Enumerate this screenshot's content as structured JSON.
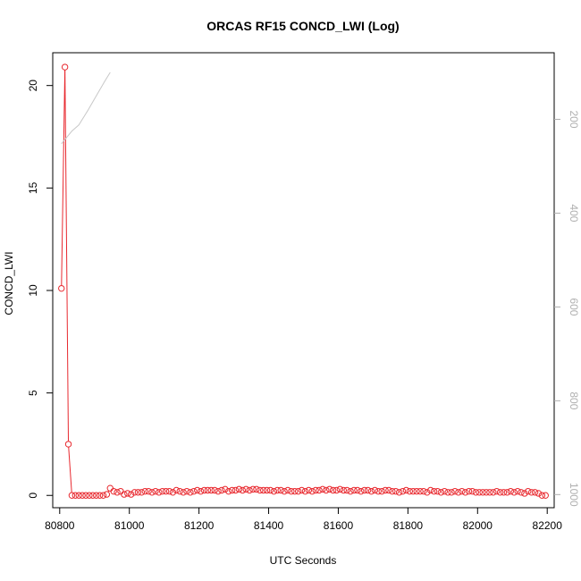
{
  "chart_data": {
    "type": "line",
    "title": "ORCAS RF15 CONCD_LWI (Log)",
    "xlabel": "UTC Seconds",
    "ylabel": "CONCD_LWI",
    "xlim": [
      80780,
      82220
    ],
    "ylim": [
      -0.6,
      21.6
    ],
    "x_ticks": [
      80800,
      81000,
      81200,
      81400,
      81600,
      81800,
      82000,
      82200
    ],
    "y_ticks": [
      0,
      5,
      10,
      15,
      20
    ],
    "y2_ticks": [
      200,
      400,
      600,
      800,
      1000
    ],
    "y2lim": [
      1028,
      58
    ],
    "y2_reversed": true,
    "grid": false,
    "series": [
      {
        "color": "#e8292f",
        "marker": "open-circle",
        "x": [
          80805,
          80815,
          80825,
          80835,
          80845,
          80855,
          80865,
          80875,
          80885,
          80895,
          80905,
          80915,
          80925,
          80935,
          80945,
          80955,
          80965,
          80975,
          80985,
          80995,
          81005,
          81015,
          81025,
          81035,
          81045,
          81055,
          81065,
          81075,
          81085,
          81095,
          81105,
          81115,
          81125,
          81135,
          81145,
          81155,
          81165,
          81175,
          81185,
          81195,
          81205,
          81215,
          81225,
          81235,
          81245,
          81255,
          81265,
          81275,
          81285,
          81295,
          81305,
          81315,
          81325,
          81335,
          81345,
          81355,
          81365,
          81375,
          81385,
          81395,
          81405,
          81415,
          81425,
          81435,
          81445,
          81455,
          81465,
          81475,
          81485,
          81495,
          81505,
          81515,
          81525,
          81535,
          81545,
          81555,
          81565,
          81575,
          81585,
          81595,
          81605,
          81615,
          81625,
          81635,
          81645,
          81655,
          81665,
          81675,
          81685,
          81695,
          81705,
          81715,
          81725,
          81735,
          81745,
          81755,
          81765,
          81775,
          81785,
          81795,
          81805,
          81815,
          81825,
          81835,
          81845,
          81855,
          81865,
          81875,
          81885,
          81895,
          81905,
          81915,
          81925,
          81935,
          81945,
          81955,
          81965,
          81975,
          81985,
          81995,
          82005,
          82015,
          82025,
          82035,
          82045,
          82055,
          82065,
          82075,
          82085,
          82095,
          82105,
          82115,
          82125,
          82135,
          82145,
          82155,
          82165,
          82175,
          82185,
          82195
        ],
        "y": [
          10.1,
          20.9,
          2.5,
          0.0,
          0.0,
          0.0,
          0.0,
          0.0,
          0.0,
          0.0,
          0.0,
          0.0,
          0.0,
          0.05,
          0.35,
          0.2,
          0.15,
          0.2,
          0.05,
          0.1,
          0.05,
          0.15,
          0.15,
          0.15,
          0.2,
          0.2,
          0.15,
          0.2,
          0.15,
          0.2,
          0.2,
          0.2,
          0.15,
          0.25,
          0.2,
          0.15,
          0.2,
          0.15,
          0.2,
          0.25,
          0.2,
          0.25,
          0.25,
          0.25,
          0.25,
          0.2,
          0.25,
          0.3,
          0.2,
          0.25,
          0.25,
          0.3,
          0.25,
          0.3,
          0.25,
          0.3,
          0.3,
          0.25,
          0.25,
          0.25,
          0.25,
          0.2,
          0.25,
          0.25,
          0.2,
          0.25,
          0.2,
          0.2,
          0.2,
          0.25,
          0.2,
          0.25,
          0.2,
          0.25,
          0.25,
          0.3,
          0.25,
          0.3,
          0.25,
          0.25,
          0.3,
          0.25,
          0.25,
          0.2,
          0.25,
          0.25,
          0.2,
          0.25,
          0.25,
          0.2,
          0.25,
          0.2,
          0.2,
          0.25,
          0.25,
          0.2,
          0.2,
          0.15,
          0.2,
          0.25,
          0.2,
          0.2,
          0.2,
          0.2,
          0.2,
          0.15,
          0.25,
          0.2,
          0.2,
          0.15,
          0.2,
          0.15,
          0.15,
          0.2,
          0.15,
          0.2,
          0.15,
          0.2,
          0.2,
          0.15,
          0.15,
          0.15,
          0.15,
          0.15,
          0.15,
          0.2,
          0.15,
          0.15,
          0.15,
          0.2,
          0.15,
          0.2,
          0.15,
          0.1,
          0.2,
          0.15,
          0.15,
          0.1,
          0.0,
          0.0
        ]
      },
      {
        "color": "#c8c8c8",
        "axis": "right",
        "x": [
          80805,
          80835,
          80855,
          80880,
          80905,
          80930,
          80945
        ],
        "y": [
          252,
          225,
          212,
          182,
          150,
          118,
          100
        ]
      }
    ]
  }
}
